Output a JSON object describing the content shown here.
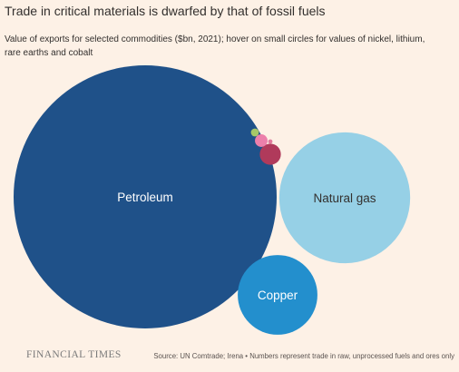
{
  "title": "Trade in critical materials is dwarfed by that of fossil fuels",
  "subtitle": "Value of exports for selected commodities ($bn, 2021); hover on small circles for values of nickel, lithium, rare earths and cobalt",
  "brand": "FINANCIAL TIMES",
  "source": "Source: UN Comtrade; Irena • Numbers represent trade in raw, unprocessed fuels and ores only",
  "chart_data": {
    "type": "bubble",
    "unit": "$bn",
    "legend": "none",
    "bubbles": [
      {
        "label": "Petroleum",
        "shown_label": "Petroleum",
        "value": 1090,
        "color": "#1f5189",
        "text_color": "#ffffff"
      },
      {
        "label": "Natural gas",
        "shown_label": "Natural gas",
        "value": 270,
        "color": "#96d0e6",
        "text_color": "#33302e"
      },
      {
        "label": "Copper",
        "shown_label": "Copper",
        "value": 100,
        "color": "#238fcd",
        "text_color": "#ffffff"
      },
      {
        "label": "Nickel",
        "shown_label": "",
        "value": 7,
        "color": "#b03a5b",
        "text_color": "#ffffff"
      },
      {
        "label": "Lithium",
        "shown_label": "",
        "value": 2.5,
        "color": "#ec7fab",
        "text_color": "#ffffff"
      },
      {
        "label": "Rare earths",
        "shown_label": "",
        "value": 1,
        "color": "#a6c768",
        "text_color": "#ffffff"
      },
      {
        "label": "Cobalt",
        "shown_label": "",
        "value": 0.3,
        "color": "#e17a9c",
        "text_color": "#ffffff"
      }
    ]
  }
}
